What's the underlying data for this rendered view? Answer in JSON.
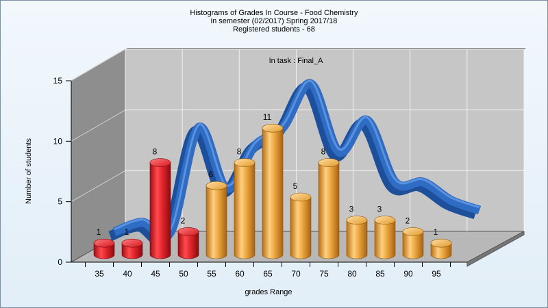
{
  "title_lines": [
    "Histograms of Grades  In Course - Food Chemistry",
    "in semester  (02/2017) Spring 2017/18",
    "Registered students - 68"
  ],
  "chart_data": {
    "type": "bar",
    "annotation": "In task : Final_A",
    "categories": [
      "35",
      "40",
      "45",
      "50",
      "55",
      "60",
      "65",
      "70",
      "75",
      "80",
      "85",
      "90",
      "95"
    ],
    "values": [
      1,
      1,
      8,
      2,
      6,
      8,
      11,
      5,
      8,
      3,
      3,
      2,
      1
    ],
    "bar_colors": [
      "#e0262c",
      "#e0262c",
      "#e0262c",
      "#e0262c",
      "#e9a23a",
      "#e9a23a",
      "#e9a23a",
      "#e9a23a",
      "#e9a23a",
      "#e9a23a",
      "#e9a23a",
      "#e9a23a",
      "#e9a23a"
    ],
    "curve_values": [
      0.4,
      1.2,
      0.4,
      9.0,
      4.0,
      7.5,
      9.0,
      12.6,
      7.0,
      9.6,
      4.5,
      4.5,
      3.0
    ],
    "curve_color": "#2f6cc4",
    "xlabel": "grades Range",
    "ylabel": "Number of students",
    "ylim": [
      0,
      15
    ],
    "yticks": [
      0,
      5,
      10,
      15
    ],
    "grid": true
  }
}
